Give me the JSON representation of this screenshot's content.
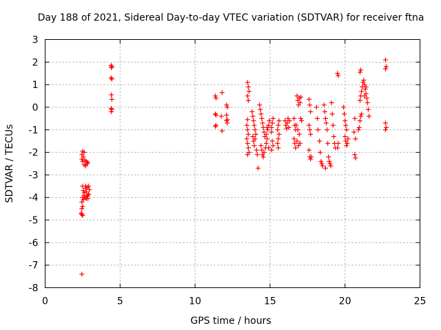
{
  "chart_data": {
    "type": "scatter",
    "title": "Day 188 of 2021, Sidereal Day-to-day VTEC variation (SDTVAR) for receiver ftna",
    "xlabel": "GPS time / hours",
    "ylabel": "SDTVAR / TECUs",
    "xlim": [
      0,
      25
    ],
    "ylim": [
      -8,
      3
    ],
    "xticks": [
      0,
      5,
      10,
      15,
      20,
      25
    ],
    "yticks": [
      -8,
      -7,
      -6,
      -5,
      -4,
      -3,
      -2,
      -1,
      0,
      1,
      2,
      3
    ],
    "grid": true,
    "marker": "+",
    "color": "#ff0000",
    "series": [
      {
        "name": "SDTVAR",
        "points": [
          [
            2.45,
            -2.1
          ],
          [
            2.5,
            -1.95
          ],
          [
            2.55,
            -2.2
          ],
          [
            2.6,
            -2.0
          ],
          [
            2.45,
            -2.3
          ],
          [
            2.5,
            -2.4
          ],
          [
            2.6,
            -2.55
          ],
          [
            2.7,
            -2.6
          ],
          [
            2.8,
            -2.5
          ],
          [
            2.75,
            -2.4
          ],
          [
            2.85,
            -2.45
          ],
          [
            2.65,
            -2.35
          ],
          [
            2.5,
            -3.5
          ],
          [
            2.55,
            -3.7
          ],
          [
            2.6,
            -3.9
          ],
          [
            2.5,
            -4.0
          ],
          [
            2.55,
            -4.1
          ],
          [
            2.6,
            -3.8
          ],
          [
            2.7,
            -3.6
          ],
          [
            2.75,
            -3.75
          ],
          [
            2.8,
            -3.95
          ],
          [
            2.85,
            -4.05
          ],
          [
            2.9,
            -3.85
          ],
          [
            2.95,
            -3.65
          ],
          [
            2.7,
            -3.5
          ],
          [
            2.8,
            -3.55
          ],
          [
            2.9,
            -3.5
          ],
          [
            2.65,
            -4.0
          ],
          [
            2.75,
            -4.05
          ],
          [
            2.85,
            -3.9
          ],
          [
            2.45,
            -4.2
          ],
          [
            2.5,
            -4.4
          ],
          [
            2.45,
            -4.5
          ],
          [
            2.4,
            -4.7
          ],
          [
            2.45,
            -4.75
          ],
          [
            2.5,
            -4.8
          ],
          [
            2.45,
            -7.4
          ],
          [
            4.4,
            1.85
          ],
          [
            4.45,
            1.8
          ],
          [
            4.42,
            1.75
          ],
          [
            4.4,
            1.3
          ],
          [
            4.45,
            1.25
          ],
          [
            4.42,
            0.55
          ],
          [
            4.45,
            0.35
          ],
          [
            4.4,
            -0.05
          ],
          [
            4.45,
            -0.1
          ],
          [
            4.42,
            -0.2
          ],
          [
            11.35,
            0.5
          ],
          [
            11.4,
            0.4
          ],
          [
            11.35,
            -0.3
          ],
          [
            11.4,
            -0.35
          ],
          [
            11.35,
            -0.85
          ],
          [
            11.4,
            -0.8
          ],
          [
            11.8,
            0.65
          ],
          [
            11.75,
            -0.4
          ],
          [
            11.8,
            -1.05
          ],
          [
            12.1,
            0.1
          ],
          [
            12.15,
            0.0
          ],
          [
            12.1,
            -0.35
          ],
          [
            12.15,
            -0.55
          ],
          [
            12.1,
            -0.6
          ],
          [
            12.15,
            -0.7
          ],
          [
            13.5,
            1.1
          ],
          [
            13.55,
            0.9
          ],
          [
            13.6,
            0.7
          ],
          [
            13.5,
            0.5
          ],
          [
            13.55,
            0.3
          ],
          [
            13.5,
            -0.55
          ],
          [
            13.45,
            -0.8
          ],
          [
            13.5,
            -1.0
          ],
          [
            13.55,
            -1.2
          ],
          [
            13.45,
            -1.4
          ],
          [
            13.5,
            -1.6
          ],
          [
            13.55,
            -1.8
          ],
          [
            13.6,
            -2.0
          ],
          [
            13.5,
            -2.1
          ],
          [
            13.8,
            -0.2
          ],
          [
            13.85,
            -0.4
          ],
          [
            13.9,
            -0.6
          ],
          [
            13.95,
            -0.8
          ],
          [
            14.0,
            -1.0
          ],
          [
            13.85,
            -1.3
          ],
          [
            13.9,
            -1.5
          ],
          [
            14.0,
            -1.4
          ],
          [
            14.05,
            -1.2
          ],
          [
            13.95,
            -1.7
          ],
          [
            14.1,
            -1.9
          ],
          [
            14.15,
            -2.1
          ],
          [
            14.2,
            -2.7
          ],
          [
            14.3,
            0.1
          ],
          [
            14.35,
            -0.1
          ],
          [
            14.4,
            -0.3
          ],
          [
            14.45,
            -0.5
          ],
          [
            14.5,
            -0.7
          ],
          [
            14.55,
            -0.9
          ],
          [
            14.6,
            -1.1
          ],
          [
            14.65,
            -1.3
          ],
          [
            14.4,
            -1.7
          ],
          [
            14.45,
            -1.9
          ],
          [
            14.5,
            -2.1
          ],
          [
            14.55,
            -2.2
          ],
          [
            14.6,
            -2.0
          ],
          [
            14.7,
            -1.8
          ],
          [
            14.75,
            -1.6
          ],
          [
            14.8,
            -1.4
          ],
          [
            14.85,
            -1.0
          ],
          [
            14.9,
            -0.8
          ],
          [
            14.95,
            -0.6
          ],
          [
            14.8,
            -0.9
          ],
          [
            14.75,
            -1.2
          ],
          [
            14.9,
            -1.8
          ],
          [
            15.1,
            -0.9
          ],
          [
            15.15,
            -0.7
          ],
          [
            15.2,
            -0.5
          ],
          [
            15.1,
            -1.1
          ],
          [
            15.15,
            -1.5
          ],
          [
            15.2,
            -1.7
          ],
          [
            15.1,
            -1.9
          ],
          [
            15.6,
            -0.6
          ],
          [
            15.55,
            -0.8
          ],
          [
            15.5,
            -1.0
          ],
          [
            15.6,
            -1.2
          ],
          [
            15.55,
            -1.4
          ],
          [
            15.5,
            -1.6
          ],
          [
            15.55,
            -1.8
          ],
          [
            16.0,
            -0.6
          ],
          [
            16.05,
            -0.8
          ],
          [
            16.1,
            -0.95
          ],
          [
            16.15,
            -0.7
          ],
          [
            16.2,
            -0.5
          ],
          [
            16.25,
            -0.9
          ],
          [
            16.3,
            -0.6
          ],
          [
            16.6,
            -0.5
          ],
          [
            16.65,
            -0.8
          ],
          [
            16.7,
            -1.0
          ],
          [
            16.6,
            -1.4
          ],
          [
            16.65,
            -1.6
          ],
          [
            16.7,
            -1.8
          ],
          [
            16.8,
            0.5
          ],
          [
            16.85,
            0.3
          ],
          [
            16.9,
            0.1
          ],
          [
            16.95,
            0.4
          ],
          [
            17.0,
            0.2
          ],
          [
            17.05,
            0.45
          ],
          [
            16.75,
            -0.8
          ],
          [
            16.85,
            -1.0
          ],
          [
            16.95,
            -1.2
          ],
          [
            17.05,
            -0.5
          ],
          [
            17.1,
            -0.6
          ],
          [
            16.8,
            -1.5
          ],
          [
            16.9,
            -1.7
          ],
          [
            17.0,
            -1.6
          ],
          [
            17.6,
            0.35
          ],
          [
            17.65,
            0.1
          ],
          [
            17.7,
            -0.2
          ],
          [
            17.6,
            -0.8
          ],
          [
            17.65,
            -1.0
          ],
          [
            17.7,
            -1.2
          ],
          [
            17.6,
            -1.9
          ],
          [
            17.65,
            -2.2
          ],
          [
            17.7,
            -2.3
          ],
          [
            17.75,
            -2.2
          ],
          [
            18.1,
            0.0
          ],
          [
            18.15,
            -0.5
          ],
          [
            18.2,
            -1.0
          ],
          [
            18.3,
            -1.5
          ],
          [
            18.35,
            -2.0
          ],
          [
            18.4,
            -2.4
          ],
          [
            18.45,
            -2.5
          ],
          [
            18.5,
            -2.6
          ],
          [
            18.6,
            0.1
          ],
          [
            18.65,
            -0.2
          ],
          [
            18.7,
            -0.5
          ],
          [
            18.75,
            -0.7
          ],
          [
            18.8,
            -1.0
          ],
          [
            18.85,
            -1.6
          ],
          [
            18.9,
            -2.2
          ],
          [
            18.95,
            -2.4
          ],
          [
            19.0,
            -2.5
          ],
          [
            19.05,
            -2.6
          ],
          [
            18.7,
            -2.7
          ],
          [
            19.1,
            0.2
          ],
          [
            19.15,
            -0.3
          ],
          [
            19.2,
            -0.8
          ],
          [
            19.25,
            -1.3
          ],
          [
            19.3,
            -1.6
          ],
          [
            19.35,
            -1.8
          ],
          [
            19.5,
            -1.8
          ],
          [
            19.55,
            -1.6
          ],
          [
            19.5,
            1.5
          ],
          [
            19.55,
            1.4
          ],
          [
            19.9,
            0.0
          ],
          [
            19.95,
            -0.3
          ],
          [
            20.0,
            -0.6
          ],
          [
            20.05,
            -0.8
          ],
          [
            20.1,
            -1.0
          ],
          [
            20.0,
            -1.3
          ],
          [
            20.05,
            -1.5
          ],
          [
            20.1,
            -1.7
          ],
          [
            20.15,
            -1.6
          ],
          [
            20.2,
            -1.4
          ],
          [
            20.6,
            -1.1
          ],
          [
            20.65,
            -0.5
          ],
          [
            20.7,
            -1.4
          ],
          [
            20.65,
            -2.1
          ],
          [
            20.7,
            -2.25
          ],
          [
            20.9,
            -1.0
          ],
          [
            20.95,
            -0.9
          ],
          [
            21.0,
            -0.6
          ],
          [
            21.05,
            -0.4
          ],
          [
            21.1,
            -0.3
          ],
          [
            21.0,
            0.3
          ],
          [
            21.05,
            0.5
          ],
          [
            21.1,
            0.7
          ],
          [
            21.15,
            0.9
          ],
          [
            21.2,
            1.1
          ],
          [
            21.25,
            1.2
          ],
          [
            21.3,
            1.0
          ],
          [
            21.35,
            0.8
          ],
          [
            21.4,
            0.6
          ],
          [
            21.45,
            0.4
          ],
          [
            21.5,
            0.2
          ],
          [
            21.55,
            -0.1
          ],
          [
            21.6,
            -0.4
          ],
          [
            21.3,
            0.5
          ],
          [
            21.4,
            0.9
          ],
          [
            21.0,
            1.55
          ],
          [
            21.05,
            1.65
          ],
          [
            22.7,
            2.1
          ],
          [
            22.75,
            1.8
          ],
          [
            22.7,
            1.7
          ],
          [
            22.7,
            -0.7
          ],
          [
            22.75,
            -0.9
          ],
          [
            22.7,
            -1.0
          ]
        ]
      }
    ]
  }
}
